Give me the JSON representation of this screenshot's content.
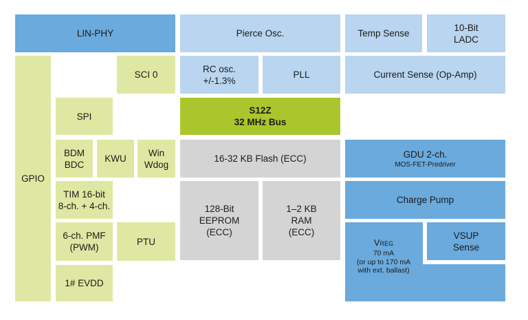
{
  "blocks": {
    "lin_phy": "LIN-PHY",
    "pierce": "Pierce Osc.",
    "temp": "Temp Sense",
    "ladc_1": "10-Bit",
    "ladc_2": "LADC",
    "gpio": "GPIO",
    "sci0": "SCI 0",
    "rc_1": "RC osc.",
    "rc_2": "+/-1.3%",
    "pll": "PLL",
    "current": "Current Sense (Op-Amp)",
    "spi": "SPI",
    "s12z_1": "S12Z",
    "s12z_2": "32 MHz Bus",
    "bdm_1": "BDM",
    "bdm_2": "BDC",
    "kwu": "KWU",
    "win_1": "Win",
    "win_2": "Wdog",
    "flash": "16-32 KB Flash (ECC)",
    "gdu_1": "GDU 2-ch.",
    "gdu_2": "MOS-FET-Predriver",
    "tim_1": "TIM 16-bit",
    "tim_2": "8-ch. + 4-ch.",
    "eeprom_1": "128-Bit",
    "eeprom_2": "EEPROM",
    "eeprom_3": "(ECC)",
    "ram_1": "1–2 KB",
    "ram_2": "RAM",
    "ram_3": "(ECC)",
    "charge": "Charge Pump",
    "pmf_1": "6-ch. PMF",
    "pmf_2": "(PWM)",
    "ptu": "PTU",
    "vreg_v": "V",
    "vreg_sub": "REG",
    "vreg_2": "70 mA",
    "vreg_3": "(or up to 170 mA",
    "vreg_4": "with ext. ballast)",
    "vsup_1": "VSUP",
    "vsup_2": "Sense",
    "evdd": "1# EVDD"
  },
  "colors": {
    "dark_blue": "#6aaadd",
    "light_blue": "#b9d5ef",
    "light_green": "#dfe8a2",
    "core_green": "#a9c72c",
    "memory_gray": "#d4d4d4"
  }
}
